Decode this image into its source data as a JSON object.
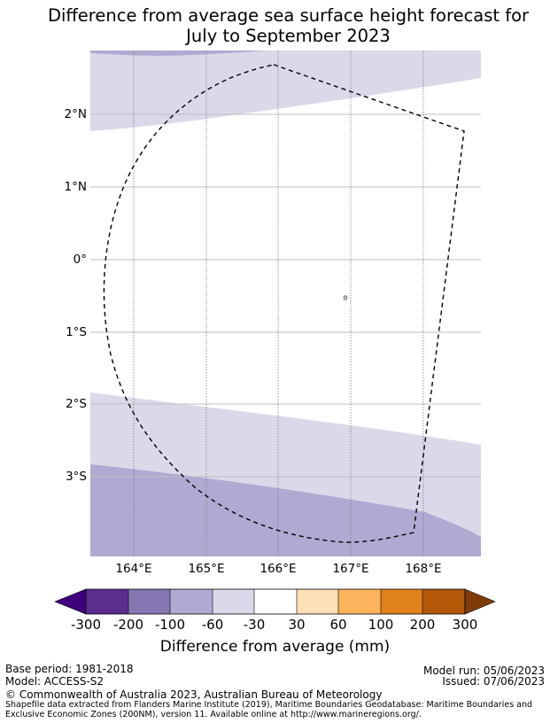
{
  "title": {
    "line1": "Difference from average sea surface height forecast for",
    "line2": "July to September 2023"
  },
  "map": {
    "lat_labels": [
      "2°N",
      "1°N",
      "0°",
      "1°S",
      "2°S",
      "3°S"
    ],
    "lon_labels": [
      "164°E",
      "165°E",
      "166°E",
      "167°E",
      "168°E"
    ],
    "lon_range": [
      163.4,
      168.8
    ],
    "lat_range": [
      -4.1,
      2.9
    ]
  },
  "colorbar": {
    "title": "Difference from average (mm)",
    "labels": [
      "-300",
      "-200",
      "-100",
      "-60",
      "-30",
      "30",
      "60",
      "100",
      "200",
      "300"
    ],
    "colors": [
      "#3f007d",
      "#5a2d8e",
      "#8577b1",
      "#b0a9d2",
      "#d9d9ea",
      "#ffffff",
      "#fde0b6",
      "#fbb45c",
      "#e1821a",
      "#b35807",
      "#7f3b08"
    ]
  },
  "footer": {
    "base_period": "Base period: 1981-2018",
    "model": "Model: ACCESS-S2",
    "model_run": "Model run: 05/06/2023",
    "issued": "Issued: 07/06/2023",
    "copyright": "© Commonwealth of Australia 2023, Australian Bureau of Meteorology",
    "source_line1": "Shapefile data extracted from Flanders Marine Institute (2019), Maritime Boundaries Geodatabase: Maritime Boundaries and",
    "source_line2": "Exclusive Economic Zones (200NM), version 11. Available online at http://www.marineregions.org/."
  }
}
